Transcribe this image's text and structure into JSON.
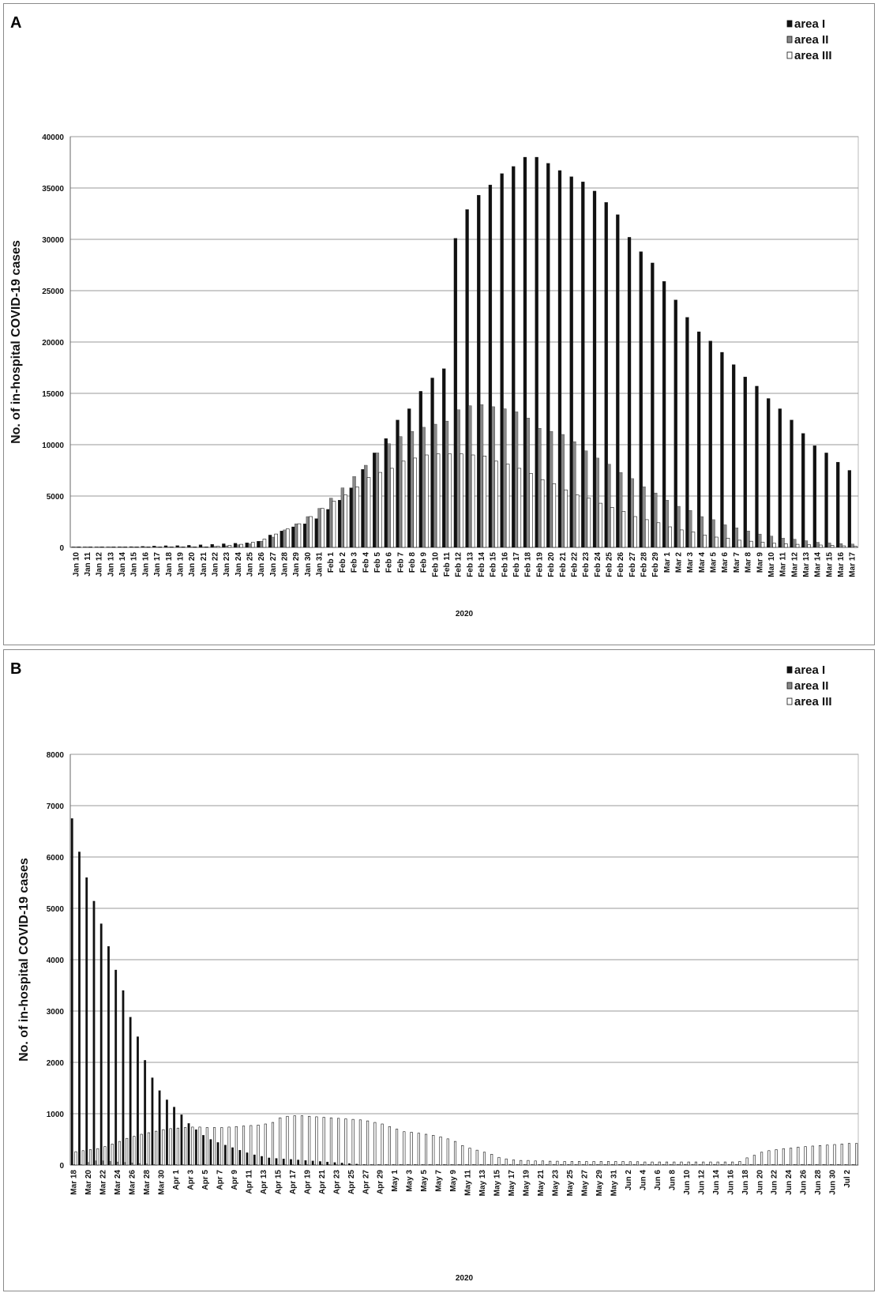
{
  "chart_data": [
    {
      "panel_label": "A",
      "type": "bar",
      "title": "",
      "xlabel": "2020",
      "ylabel": "No. of in-hospital COVID-19 cases",
      "ylim": [
        0,
        40000
      ],
      "yticks": [
        0,
        5000,
        10000,
        15000,
        20000,
        25000,
        30000,
        35000,
        40000
      ],
      "grid": true,
      "legend_position": "top-right",
      "categories": [
        "Jan 10",
        "Jan 11",
        "Jan 12",
        "Jan 13",
        "Jan 14",
        "Jan 15",
        "Jan 16",
        "Jan 17",
        "Jan 18",
        "Jan 19",
        "Jan 20",
        "Jan 21",
        "Jan 22",
        "Jan 23",
        "Jan 24",
        "Jan 25",
        "Jan 26",
        "Jan 27",
        "Jan 28",
        "Jan 29",
        "Jan 30",
        "Jan 31",
        "Feb 1",
        "Feb 2",
        "Feb 3",
        "Feb 4",
        "Feb 5",
        "Feb 6",
        "Feb 7",
        "Feb 8",
        "Feb 9",
        "Feb 10",
        "Feb 11",
        "Feb 12",
        "Feb 13",
        "Feb 14",
        "Feb 15",
        "Feb 16",
        "Feb 17",
        "Feb 18",
        "Feb 19",
        "Feb 20",
        "Feb 21",
        "Feb 22",
        "Feb 23",
        "Feb 24",
        "Feb 25",
        "Feb 26",
        "Feb 27",
        "Feb 28",
        "Feb 29",
        "Mar 1",
        "Mar 2",
        "Mar 3",
        "Mar 4",
        "Mar 5",
        "Mar 6",
        "Mar 7",
        "Mar 8",
        "Mar 9",
        "Mar 10",
        "Mar 11",
        "Mar 12",
        "Mar 13",
        "Mar 14",
        "Mar 15",
        "Mar 16",
        "Mar 17"
      ],
      "series": [
        {
          "name": "area I",
          "color": "#111111",
          "values": [
            41,
            41,
            41,
            45,
            62,
            70,
            100,
            130,
            160,
            170,
            200,
            250,
            300,
            350,
            400,
            450,
            600,
            1200,
            1600,
            2000,
            2300,
            2800,
            3700,
            4600,
            5800,
            7600,
            9200,
            10600,
            12400,
            13500,
            15200,
            16500,
            17400,
            30100,
            32900,
            34300,
            35300,
            36400,
            37100,
            38000,
            38000,
            37400,
            36700,
            36100,
            35600,
            34700,
            33600,
            32400,
            30200,
            28800,
            27700,
            25900,
            24100,
            22400,
            21000,
            20100,
            19000,
            17800,
            16600,
            15700,
            14500,
            13500,
            12400,
            11100,
            9900,
            9200,
            8300,
            7500
          ]
        },
        {
          "name": "area II",
          "color": "#888888",
          "values": [
            0,
            0,
            0,
            0,
            0,
            0,
            0,
            0,
            0,
            0,
            0,
            50,
            100,
            150,
            250,
            350,
            600,
            1000,
            1700,
            2300,
            3000,
            3800,
            4800,
            5800,
            6900,
            8000,
            9200,
            10100,
            10800,
            11300,
            11700,
            12000,
            12300,
            13400,
            13800,
            13900,
            13700,
            13500,
            13200,
            12600,
            11600,
            11300,
            11000,
            10300,
            9400,
            8700,
            8100,
            7300,
            6700,
            5900,
            5300,
            4600,
            4000,
            3600,
            3000,
            2700,
            2200,
            1900,
            1600,
            1300,
            1100,
            900,
            800,
            650,
            500,
            430,
            370,
            320
          ]
        },
        {
          "name": "area III",
          "color": "#ffffff",
          "values": [
            0,
            0,
            0,
            0,
            0,
            0,
            0,
            0,
            0,
            0,
            0,
            0,
            100,
            200,
            300,
            500,
            800,
            1300,
            1800,
            2300,
            3000,
            3800,
            4500,
            5100,
            5900,
            6800,
            7300,
            7700,
            8400,
            8700,
            9000,
            9100,
            9100,
            9100,
            9000,
            8900,
            8400,
            8100,
            7700,
            7200,
            6600,
            6200,
            5600,
            5100,
            4800,
            4300,
            3900,
            3500,
            3000,
            2700,
            2400,
            2000,
            1700,
            1500,
            1200,
            1000,
            900,
            700,
            600,
            500,
            400,
            350,
            300,
            250,
            230,
            200,
            150,
            100
          ]
        }
      ]
    },
    {
      "panel_label": "B",
      "type": "bar",
      "title": "",
      "xlabel": "2020",
      "ylabel": "No. of in-hospital COVID-19 cases",
      "ylim": [
        0,
        8000
      ],
      "yticks": [
        0,
        1000,
        2000,
        3000,
        4000,
        5000,
        6000,
        7000,
        8000
      ],
      "grid": true,
      "legend_position": "top-right",
      "tick_labels": [
        "Mar 18",
        "Mar 20",
        "Mar 22",
        "Mar 24",
        "Mar 26",
        "Mar 28",
        "Mar 30",
        "Apr 1",
        "Apr 3",
        "Apr 5",
        "Apr 7",
        "Apr 9",
        "Apr 11",
        "Apr 13",
        "Apr 15",
        "Apr 17",
        "Apr 19",
        "Apr 21",
        "Apr 23",
        "Apr 25",
        "Apr 27",
        "Apr 29",
        "May 1",
        "May 3",
        "May 5",
        "May 7",
        "May 9",
        "May 11",
        "May 13",
        "May 15",
        "May 17",
        "May 19",
        "May 21",
        "May 23",
        "May 25",
        "May 27",
        "May 29",
        "May 31",
        "Jun 2",
        "Jun 4",
        "Jun 6",
        "Jun 8",
        "Jun 10",
        "Jun 12",
        "Jun 14",
        "Jun 16",
        "Jun 18",
        "Jun 20",
        "Jun 22",
        "Jun 24",
        "Jun 26",
        "Jun 28",
        "Jun 30",
        "Jul 2"
      ],
      "n_days": 108,
      "series": [
        {
          "name": "area I",
          "color": "#111111",
          "values": [
            6750,
            6100,
            5600,
            5140,
            4700,
            4260,
            3800,
            3400,
            2880,
            2500,
            2040,
            1700,
            1450,
            1270,
            1130,
            980,
            810,
            690,
            580,
            500,
            440,
            390,
            340,
            290,
            240,
            200,
            170,
            140,
            130,
            120,
            110,
            100,
            90,
            80,
            70,
            60,
            50,
            40,
            30,
            20,
            10,
            5,
            0,
            0,
            0,
            0,
            0,
            0,
            0,
            0,
            0,
            0,
            0,
            0,
            0,
            0,
            0,
            0,
            0,
            0,
            0,
            0,
            0,
            0,
            0,
            0,
            0,
            0,
            0,
            0,
            0,
            0,
            0,
            0,
            0,
            0,
            0,
            0,
            0,
            0,
            0,
            0,
            0,
            0,
            0,
            0,
            0,
            0,
            0,
            0,
            0,
            0,
            0,
            0,
            0,
            0,
            0,
            0,
            0,
            0,
            0,
            0,
            0,
            0,
            0,
            0,
            0,
            0
          ]
        },
        {
          "name": "area II",
          "color": "#888888",
          "values": [
            0,
            0,
            50,
            80,
            80,
            70,
            60,
            50,
            40,
            30,
            20,
            10,
            5,
            0,
            0,
            0,
            0,
            0,
            0,
            0,
            0,
            0,
            0,
            0,
            0,
            0,
            0,
            0,
            0,
            0,
            0,
            0,
            0,
            0,
            0,
            0,
            0,
            0,
            0,
            0,
            0,
            0,
            0,
            0,
            0,
            0,
            0,
            0,
            0,
            0,
            0,
            0,
            0,
            0,
            0,
            0,
            0,
            0,
            0,
            0,
            0,
            0,
            0,
            0,
            0,
            0,
            0,
            0,
            0,
            0,
            0,
            0,
            0,
            0,
            0,
            0,
            0,
            0,
            0,
            0,
            0,
            0,
            0,
            0,
            0,
            0,
            0,
            0,
            0,
            0,
            0,
            0,
            0,
            0,
            0,
            0,
            0,
            0,
            0,
            0,
            0,
            0,
            0,
            0,
            0,
            0,
            0,
            0
          ]
        },
        {
          "name": "area III",
          "color": "#ffffff",
          "values": [
            260,
            280,
            300,
            320,
            360,
            410,
            460,
            520,
            560,
            600,
            630,
            660,
            690,
            710,
            720,
            730,
            740,
            740,
            730,
            730,
            730,
            740,
            750,
            760,
            770,
            780,
            800,
            830,
            920,
            950,
            960,
            960,
            950,
            940,
            930,
            920,
            910,
            900,
            890,
            880,
            860,
            830,
            800,
            750,
            700,
            650,
            640,
            620,
            600,
            580,
            550,
            510,
            460,
            380,
            330,
            290,
            250,
            210,
            150,
            120,
            100,
            90,
            90,
            80,
            80,
            75,
            75,
            70,
            70,
            70,
            70,
            70,
            70,
            70,
            70,
            70,
            65,
            65,
            60,
            60,
            60,
            60,
            60,
            60,
            60,
            60,
            60,
            60,
            60,
            60,
            60,
            70,
            140,
            190,
            250,
            280,
            300,
            320,
            330,
            350,
            360,
            370,
            380,
            390,
            400,
            410,
            420,
            420
          ]
        }
      ]
    }
  ]
}
